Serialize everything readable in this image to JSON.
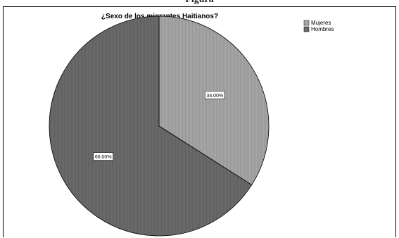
{
  "top_caption": "Figura",
  "chart_data": {
    "type": "pie",
    "title": "¿Sexo de los migrantes Haitianos?",
    "slices": [
      {
        "name": "Mujeres",
        "value": 34.0,
        "label": "34.00%",
        "color": "#a6a6a6"
      },
      {
        "name": "Hombres",
        "value": 66.0,
        "label": "66.00%",
        "color": "#6b6b6b"
      }
    ],
    "start_angle": "12 o'clock, clockwise",
    "legend_position": "top-right"
  }
}
